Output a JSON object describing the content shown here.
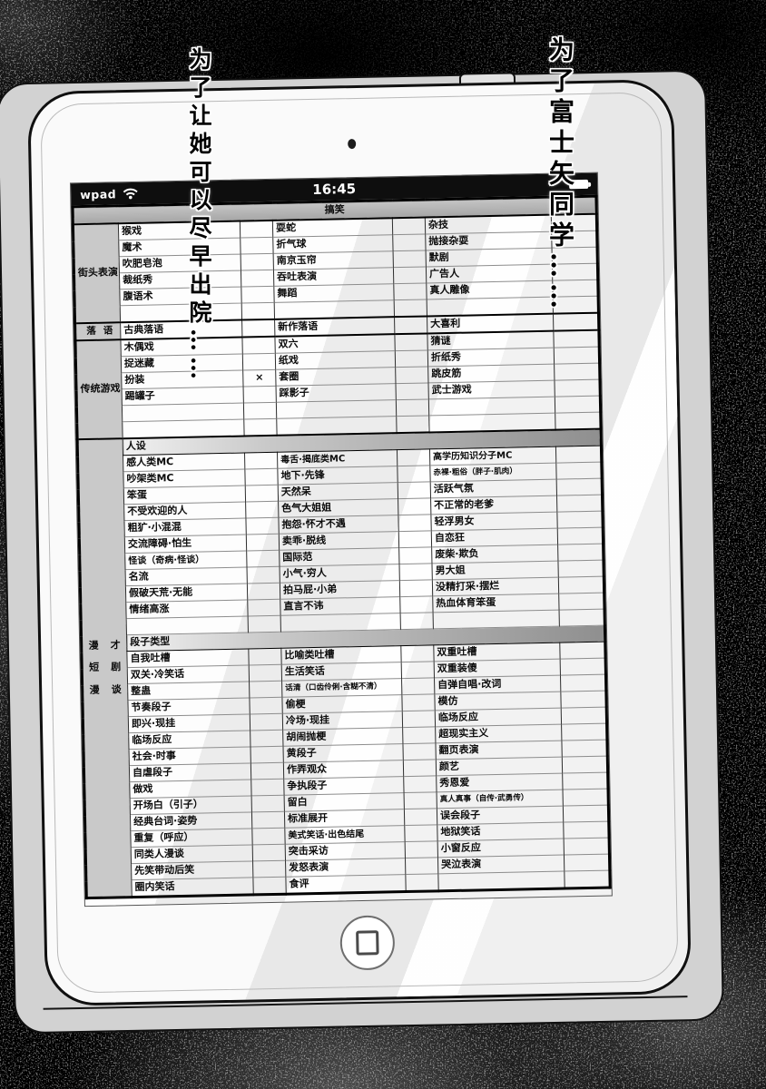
{
  "speech": {
    "top_left_line1": "为了让她",
    "top_left_line2": "可以尽早出院……",
    "top_right": "为了富士矢同学……"
  },
  "tablet": {
    "statusbar": {
      "carrier": "wpad",
      "time": "16:45",
      "icons": [
        "wifi-icon",
        "battery-icon"
      ]
    },
    "hardware_icons": [
      "front-camera",
      "power-button",
      "home-button"
    ],
    "colors": {
      "statusbar_bg": "#0e0e0e",
      "sheet_title_gray": "#b5b5b5",
      "row_header_gray": "#c9c9c9"
    },
    "sheet": {
      "title": "搞笑",
      "sections": [
        {
          "header": "街头表演",
          "rows": [
            {
              "cells": [
                "猴戏",
                "耍蛇",
                "杂技"
              ]
            },
            {
              "cells": [
                "魔术",
                "折气球",
                "抛接杂耍"
              ]
            },
            {
              "cells": [
                "吹肥皂泡",
                "南京玉帘",
                "默剧"
              ]
            },
            {
              "cells": [
                "裁纸秀",
                "吞吐表演",
                "广告人"
              ]
            },
            {
              "cells": [
                "腹语术",
                "舞蹈",
                "真人雕像"
              ]
            },
            {
              "cells": [
                "",
                "",
                ""
              ]
            }
          ]
        },
        {
          "header": "落语",
          "spread": true,
          "rows": [
            {
              "cells": [
                "古典落语",
                "新作落语",
                "大喜利"
              ]
            }
          ]
        },
        {
          "header": "传统游戏",
          "rows": [
            {
              "cells": [
                "木偶戏",
                "双六",
                "猜谜"
              ]
            },
            {
              "cells": [
                "捉迷藏",
                "纸戏",
                "折纸秀"
              ]
            },
            {
              "cells": [
                "扮装",
                "套圈",
                "跳皮筋"
              ],
              "mark1": "×"
            },
            {
              "cells": [
                "踢罐子",
                "踩影子",
                "武士游戏"
              ]
            },
            {
              "cells": [
                "",
                "",
                ""
              ]
            },
            {
              "cells": [
                "",
                "",
                ""
              ]
            }
          ]
        },
        {
          "header_words": [
            "漫才",
            "短剧",
            "漫谈"
          ],
          "rows": [
            {
              "title": "人设"
            },
            {
              "cells": [
                "感人类MC",
                "毒舌·揭底类MC",
                "高学历知识分子MC"
              ]
            },
            {
              "cells": [
                "吵架类MC",
                "地下·先锋",
                "赤裸·粗俗（胖子·肌肉）"
              ]
            },
            {
              "cells": [
                "笨蛋",
                "天然呆",
                "活跃气氛"
              ]
            },
            {
              "cells": [
                "不受欢迎的人",
                "色气大姐姐",
                "不正常的老爹"
              ]
            },
            {
              "cells": [
                "粗犷·小混混",
                "抱怨·怀才不遇",
                "轻浮男女"
              ]
            },
            {
              "cells": [
                "交流障碍·怕生",
                "卖乖·脱线",
                "自恋狂"
              ]
            },
            {
              "cells": [
                "怪谈（奇病·怪谈）",
                "国际范",
                "废柴·欺负"
              ]
            },
            {
              "cells": [
                "名流",
                "小气·穷人",
                "男大姐"
              ]
            },
            {
              "cells": [
                "假破天荒·无能",
                "拍马屁·小弟",
                "没精打采·摆烂"
              ]
            },
            {
              "cells": [
                "情绪高涨",
                "直言不讳",
                "热血体育笨蛋"
              ]
            },
            {
              "cells": [
                "",
                "",
                ""
              ]
            },
            {
              "title": "段子类型"
            },
            {
              "cells": [
                "自我吐槽",
                "比喻类吐槽",
                "双重吐槽"
              ]
            },
            {
              "cells": [
                "双关·冷笑话",
                "生活笑话",
                "双重装傻"
              ]
            },
            {
              "cells": [
                "整蛊",
                "话清（口齿伶俐·含糊不清）",
                "自弹自唱·改词"
              ]
            },
            {
              "cells": [
                "节奏段子",
                "偷梗",
                "模仿"
              ]
            },
            {
              "cells": [
                "即兴·现挂",
                "冷场·现挂",
                "临场反应"
              ]
            },
            {
              "cells": [
                "临场反应",
                "胡闹抛梗",
                "超现实主义"
              ]
            },
            {
              "cells": [
                "社会·时事",
                "黄段子",
                "翻页表演"
              ]
            },
            {
              "cells": [
                "自虐段子",
                "作弄观众",
                "颜艺"
              ]
            },
            {
              "cells": [
                "做戏",
                "争执段子",
                "秀恩爱"
              ]
            },
            {
              "cells": [
                "开场白（引子）",
                "留白",
                "真人真事（自传·武勇传）"
              ]
            },
            {
              "cells": [
                "经典台词·姿势",
                "标准展开",
                "误会段子"
              ]
            },
            {
              "cells": [
                "重复（呼应）",
                "美式笑话·出色结尾",
                "地狱笑话"
              ]
            },
            {
              "cells": [
                "同类人漫谈",
                "突击采访",
                "小窗反应"
              ]
            },
            {
              "cells": [
                "先笑带动后笑",
                "发怒表演",
                "哭泣表演"
              ]
            },
            {
              "cells": [
                "圈内笑话",
                "食评",
                ""
              ]
            }
          ]
        }
      ]
    }
  }
}
